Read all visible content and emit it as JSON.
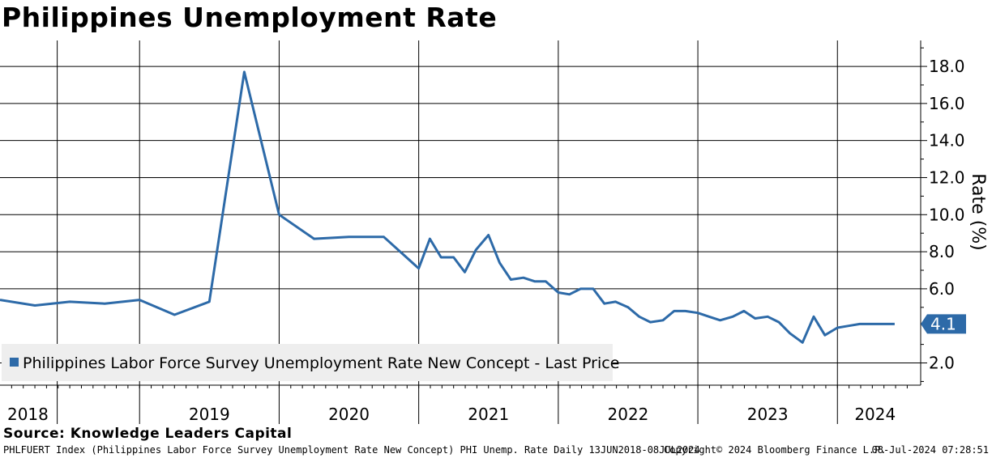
{
  "title": "Philippines Unemployment Rate",
  "source": "Source: Knowledge Leaders Capital",
  "footer": {
    "description": "PHLFUERT Index (Philippines Labor Force Survey Unemployment Rate New Concept) PHI Unemp. Rate  Daily 13JUN2018-08JUL2024",
    "copyright": "Copyright© 2024 Bloomberg Finance L.P.",
    "timestamp": "08-Jul-2024 07:28:51"
  },
  "colors": {
    "line": "#2d6aa8",
    "grid": "#000000",
    "legend_bg": "#eeeeee",
    "last_label_bg": "#2d6aa8"
  },
  "chart_data": {
    "type": "line",
    "title": "Philippines Unemployment Rate",
    "ylabel": "Rate (%)",
    "ylim": [
      0.8,
      19.4
    ],
    "xlim": [
      2018.0,
      2024.55
    ],
    "yticks": [
      "2.0",
      "6.0",
      "8.0",
      "10.0",
      "12.0",
      "14.0",
      "16.0",
      "18.0"
    ],
    "ytick_values": [
      2,
      6,
      8,
      10,
      12,
      14,
      16,
      18
    ],
    "year_labels": [
      "2018",
      "2019",
      "2020",
      "2021",
      "2022",
      "2023",
      "2024"
    ],
    "year_label_positions": [
      2018.2,
      2019.5,
      2020.5,
      2021.5,
      2022.5,
      2023.5,
      2024.27
    ],
    "year_boundaries": [
      2018.41,
      2019,
      2020,
      2021,
      2022,
      2023,
      2024
    ],
    "legend": "Philippines Labor Force Survey Unemployment Rate New Concept - Last Price",
    "last_value": 4.1,
    "last_label": "4.1",
    "series": [
      {
        "name": "Philippines Labor Force Survey Unemployment Rate New Concept - Last Price",
        "x": [
          2018.0,
          2018.25,
          2018.5,
          2018.75,
          2019.0,
          2019.25,
          2019.5,
          2019.75,
          2020.0,
          2020.25,
          2020.5,
          2020.75,
          2021.0,
          2021.08,
          2021.16,
          2021.25,
          2021.33,
          2021.41,
          2021.5,
          2021.58,
          2021.66,
          2021.75,
          2021.83,
          2021.91,
          2022.0,
          2022.08,
          2022.16,
          2022.25,
          2022.33,
          2022.41,
          2022.5,
          2022.58,
          2022.66,
          2022.75,
          2022.83,
          2022.91,
          2023.0,
          2023.08,
          2023.16,
          2023.25,
          2023.33,
          2023.41,
          2023.5,
          2023.58,
          2023.66,
          2023.75,
          2023.83,
          2023.91,
          2024.0,
          2024.08,
          2024.16,
          2024.25,
          2024.41
        ],
        "values": [
          5.4,
          5.1,
          5.3,
          5.2,
          5.4,
          4.6,
          5.3,
          17.7,
          10.0,
          8.7,
          8.8,
          8.8,
          7.1,
          8.7,
          7.7,
          7.7,
          6.9,
          8.1,
          8.9,
          7.4,
          6.5,
          6.6,
          6.4,
          6.4,
          5.8,
          5.7,
          6.0,
          6.0,
          5.2,
          5.3,
          5.0,
          4.5,
          4.2,
          4.3,
          4.8,
          4.8,
          4.7,
          4.5,
          4.3,
          4.5,
          4.8,
          4.4,
          4.5,
          4.2,
          3.6,
          3.1,
          4.5,
          3.5,
          3.9,
          4.0,
          4.1,
          4.1,
          4.1
        ]
      }
    ]
  }
}
